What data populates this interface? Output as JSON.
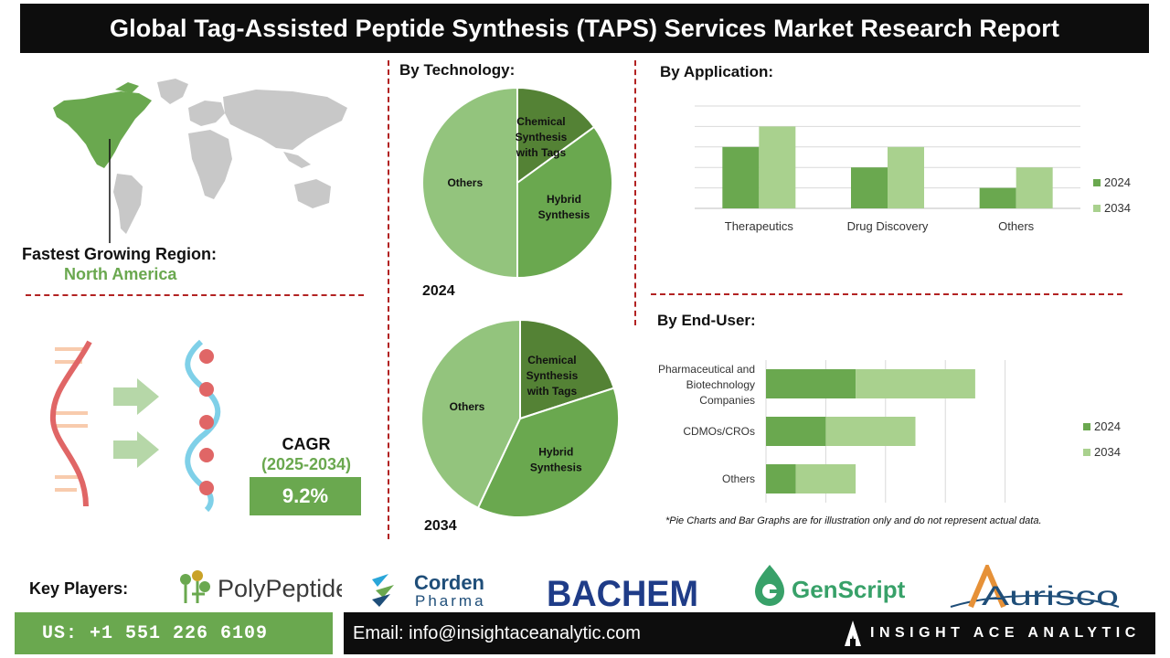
{
  "header": {
    "title": "Global Tag-Assisted Peptide Synthesis (TAPS) Services Market  Research Report"
  },
  "region": {
    "label": "Fastest Growing Region:",
    "value": "North America"
  },
  "cagr": {
    "title": "CAGR",
    "period": "(2025-2034)",
    "value": "9.2%"
  },
  "sections": {
    "technology": "By Technology:",
    "application": "By Application:",
    "end_user": "By End-User:"
  },
  "footnote": "*Pie Charts and Bar Graphs are for illustration only and do not represent actual data.",
  "key_players": {
    "label": "Key Players:",
    "companies": [
      "PolyPeptide",
      "Corden",
      "Pharma",
      "BACHEM",
      "GenScript",
      "Aurisco"
    ]
  },
  "footer": {
    "phone": "US: +1 551 226 6109",
    "email": "Email: info@insightaceanalytic.com",
    "brand": "INSIGHT ACE ANALYTIC"
  },
  "colors": {
    "dark_green": "#548235",
    "mid_green": "#6aa84f",
    "light_green": "#a9d18e",
    "pale_green": "#93c47d",
    "accent_red": "#b22222",
    "map_gray": "#c8c8c8"
  },
  "chart_data": [
    {
      "type": "pie",
      "year": "2024",
      "labels": [
        "Chemical Synthesis with Tags",
        "Hybrid Synthesis",
        "Others"
      ],
      "values": [
        15,
        35,
        50
      ],
      "colors": [
        "#548235",
        "#6aa84f",
        "#93c47d"
      ]
    },
    {
      "type": "pie",
      "year": "2034",
      "labels": [
        "Chemical Synthesis with Tags",
        "Hybrid Synthesis",
        "Others"
      ],
      "values": [
        20,
        37,
        43
      ],
      "colors": [
        "#548235",
        "#6aa84f",
        "#93c47d"
      ]
    },
    {
      "type": "bar",
      "categories": [
        "Therapeutics",
        "Drug Discovery",
        "Others"
      ],
      "series": [
        {
          "name": "2024",
          "values": [
            3,
            2,
            1
          ],
          "color": "#6aa84f"
        },
        {
          "name": "2034",
          "values": [
            4,
            3,
            2
          ],
          "color": "#a9d18e"
        }
      ],
      "ylim": [
        0,
        5
      ],
      "grid": true,
      "legend": "right"
    },
    {
      "type": "bar",
      "orientation": "horizontal",
      "stacked": true,
      "categories": [
        "Pharmaceutical and Biotechnology Companies",
        "CDMOs/CROs",
        "Others"
      ],
      "series": [
        {
          "name": "2024",
          "values": [
            3,
            2,
            1
          ],
          "color": "#6aa84f"
        },
        {
          "name": "2034",
          "values": [
            4,
            3,
            2
          ],
          "color": "#a9d18e"
        }
      ],
      "xlim": [
        0,
        8
      ],
      "grid": true,
      "legend": "right"
    }
  ]
}
